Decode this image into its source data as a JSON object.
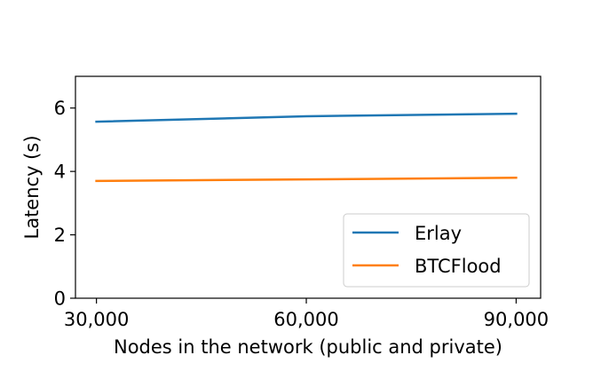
{
  "chart_data": {
    "type": "line",
    "title": "",
    "xlabel": "Nodes in the network (public and private)",
    "ylabel": "Latency (s)",
    "x": [
      30000,
      60000,
      90000
    ],
    "x_tick_labels": [
      "30,000",
      "60,000",
      "90,000"
    ],
    "xlim": [
      27000,
      93500
    ],
    "ylim": [
      0,
      7
    ],
    "y_ticks": [
      0,
      2,
      4,
      6
    ],
    "y_tick_labels": [
      "0",
      "2",
      "4",
      "6"
    ],
    "grid": false,
    "legend_position": "lower-right",
    "series": [
      {
        "name": "Erlay",
        "color": "#1f77b4",
        "values": [
          5.57,
          5.74,
          5.82
        ]
      },
      {
        "name": "BTCFlood",
        "color": "#ff7f0e",
        "values": [
          3.7,
          3.75,
          3.8
        ]
      }
    ]
  }
}
